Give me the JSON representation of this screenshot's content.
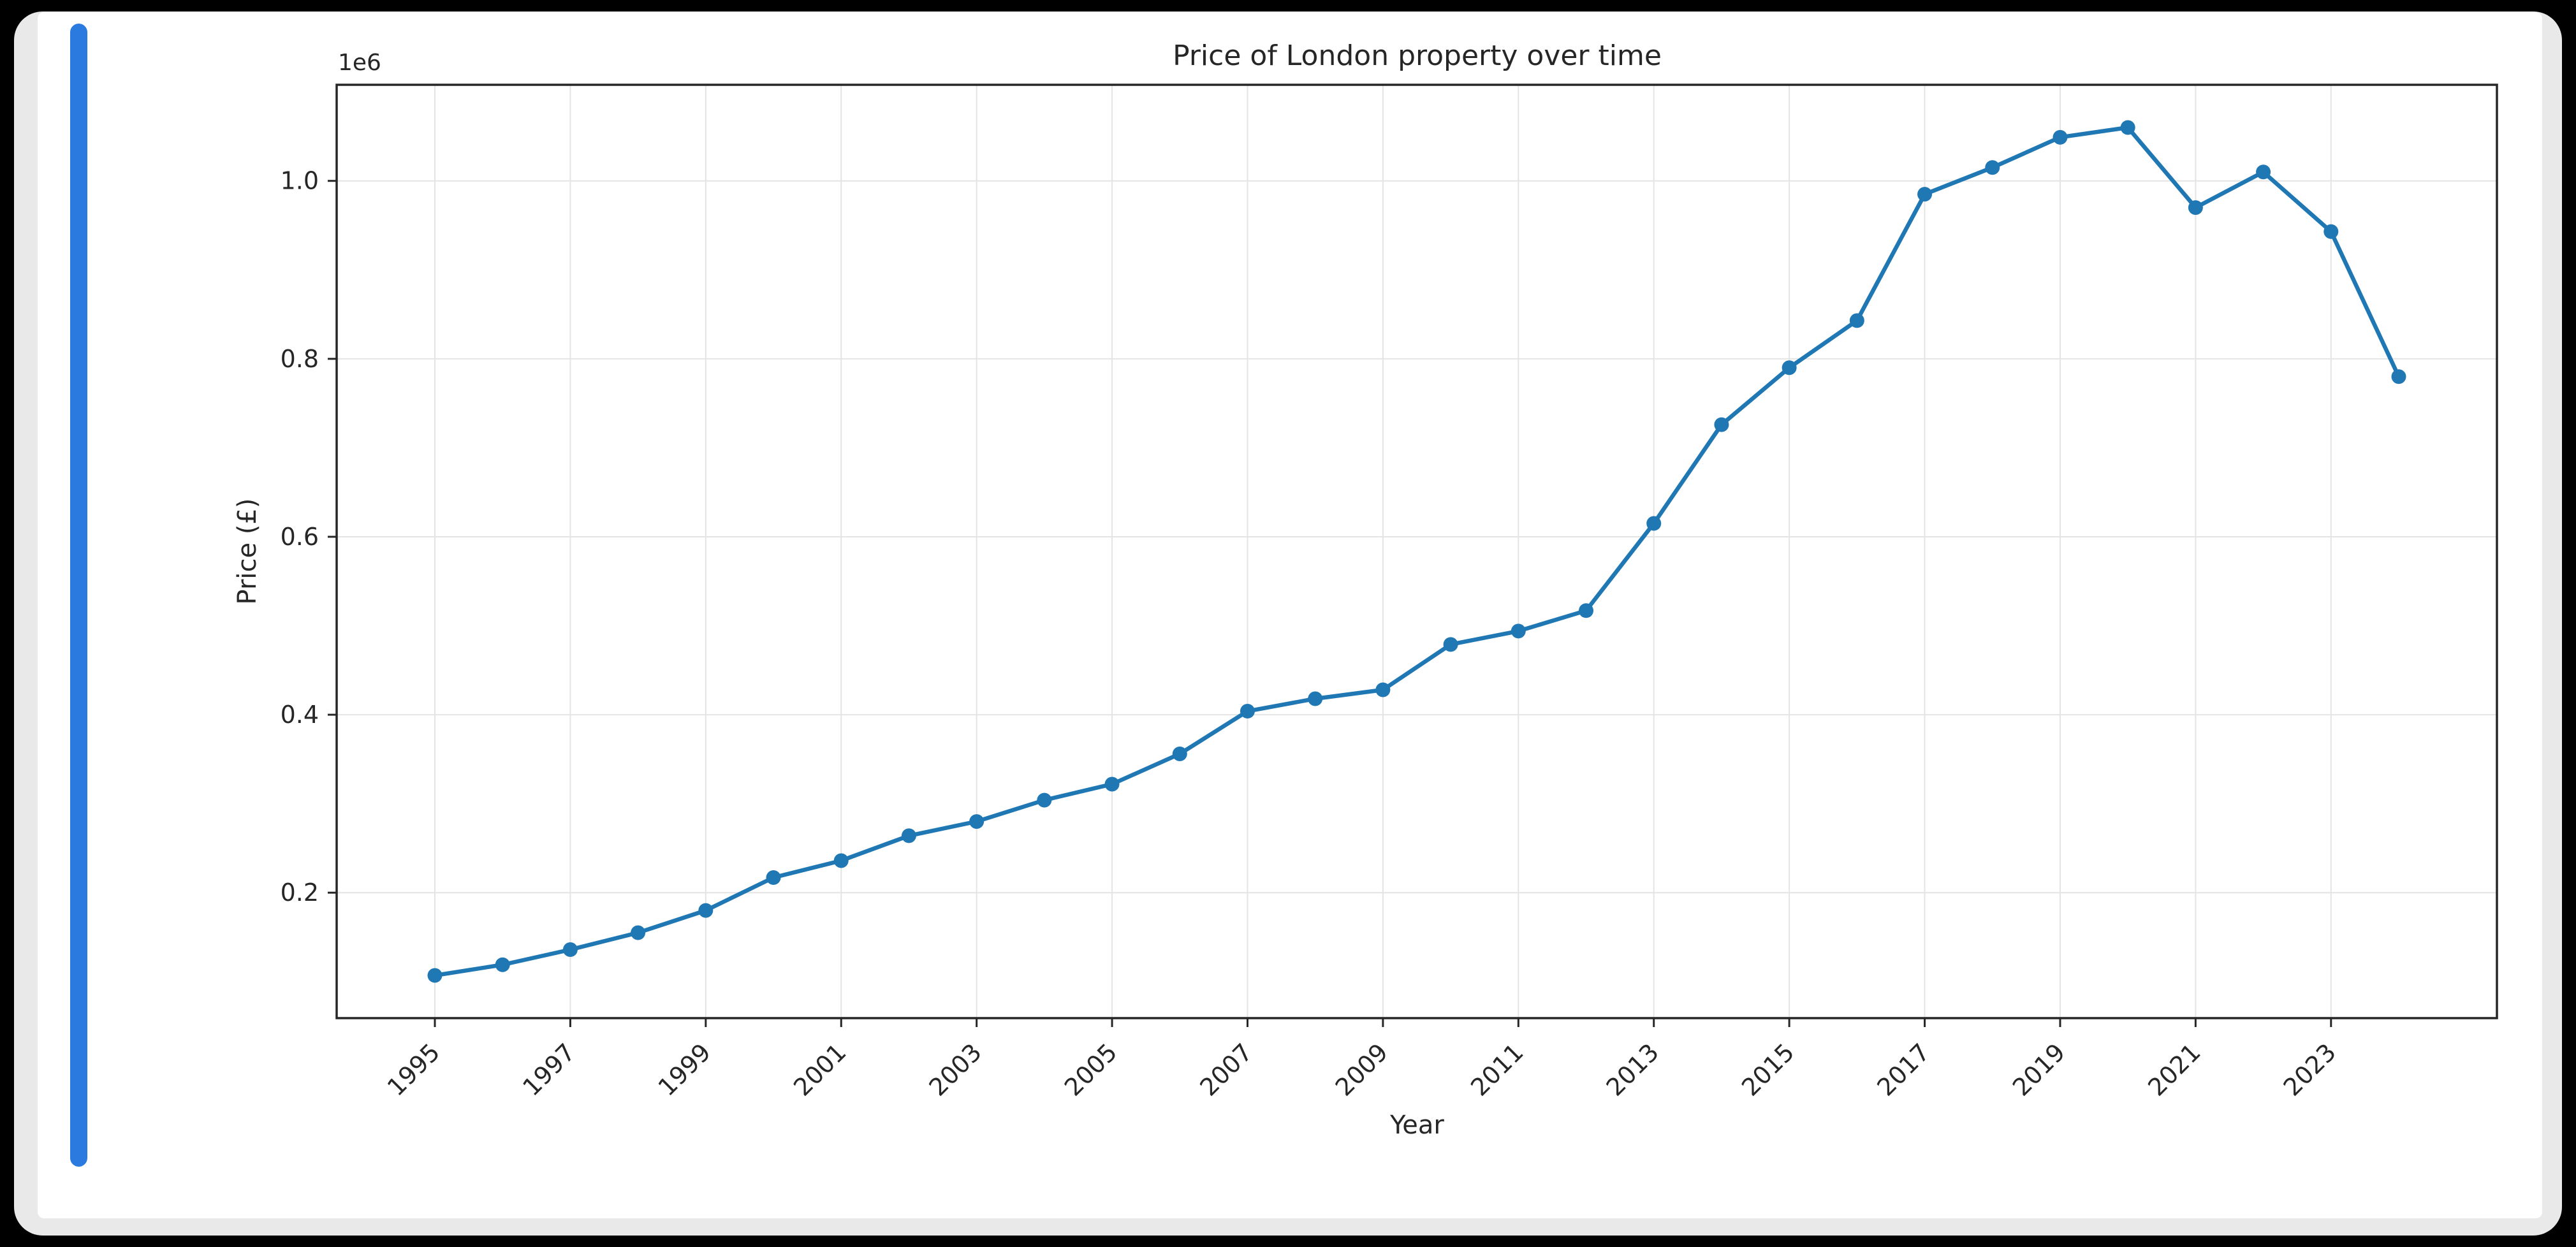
{
  "window": {
    "background_color": "#000000",
    "card_color": "#ffffff",
    "card_edge_color": "#e9e9e9",
    "scrollbar_color": "#2b7ae0"
  },
  "chart_data": {
    "type": "line",
    "title": "Price of London property over time",
    "xlabel": "Year",
    "ylabel": "Price (£)",
    "offset_text": "1e6",
    "x": [
      1995,
      1996,
      1997,
      1998,
      1999,
      2000,
      2001,
      2002,
      2003,
      2004,
      2005,
      2006,
      2007,
      2008,
      2009,
      2010,
      2011,
      2012,
      2013,
      2014,
      2015,
      2016,
      2017,
      2018,
      2019,
      2020,
      2021,
      2022,
      2023,
      2024
    ],
    "values": [
      107000,
      119000,
      136000,
      155000,
      180000,
      217000,
      236000,
      264000,
      280000,
      304000,
      322000,
      356000,
      404000,
      418000,
      428000,
      479000,
      494000,
      517000,
      615000,
      726000,
      790000,
      843000,
      985000,
      1015000,
      1049000,
      1060000,
      970000,
      1010000,
      943000,
      780000
    ],
    "xlim": [
      1993.55,
      2025.45
    ],
    "ylim": [
      59000,
      1108000
    ],
    "xticks": [
      1995,
      1997,
      1999,
      2001,
      2003,
      2005,
      2007,
      2009,
      2011,
      2013,
      2015,
      2017,
      2019,
      2021,
      2023
    ],
    "yticks": [
      200000,
      400000,
      600000,
      800000,
      1000000
    ],
    "ytick_labels": [
      "0.2",
      "0.4",
      "0.6",
      "0.8",
      "1.0"
    ],
    "grid": true,
    "legend": null,
    "line_color": "#1f77b4",
    "marker_color": "#1f77b4",
    "grid_color": "#e4e4e4",
    "spine_color": "#262626",
    "tick_text_color": "#262626"
  }
}
